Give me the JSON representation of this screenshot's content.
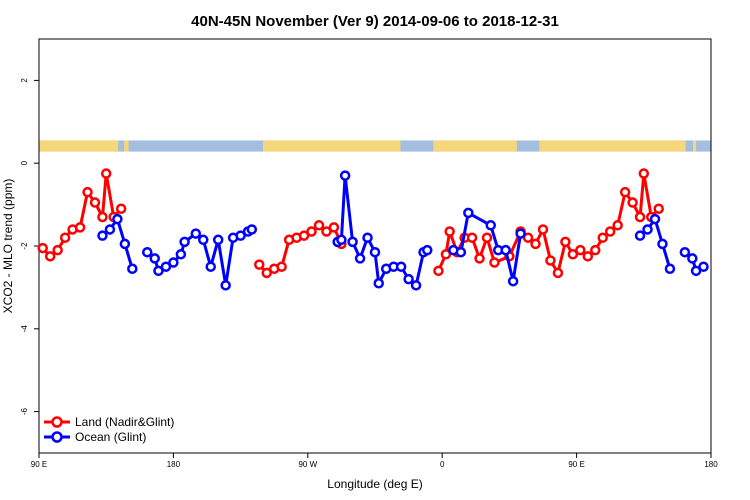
{
  "chart_data": {
    "type": "line",
    "title": "40N-45N November (Ver 9)   2014-09-06 to 2018-12-31",
    "xlabel": "Longitude (deg E)",
    "ylabel": "XCO2 - MLO trend (ppm)",
    "x_ticks": [
      {
        "value": 90,
        "label": "90 E"
      },
      {
        "value": 180,
        "label": "180"
      },
      {
        "value": 270,
        "label": "90 W"
      },
      {
        "value": 360,
        "label": "0"
      },
      {
        "value": 450,
        "label": "90 E"
      },
      {
        "value": 540,
        "label": "180"
      }
    ],
    "y_ticks": [
      {
        "value": 2,
        "label": "2"
      },
      {
        "value": 0,
        "label": "0"
      },
      {
        "value": -2,
        "label": "-2"
      },
      {
        "value": -4,
        "label": "-4"
      },
      {
        "value": -6,
        "label": "-6"
      }
    ],
    "xlim": [
      90,
      540
    ],
    "ylim": [
      -7.0,
      3.0
    ],
    "legend_position": "bottom-left",
    "land_mask_band": {
      "y_range": [
        0.28,
        0.55
      ],
      "land_color": "#f6d87a",
      "ocean_color": "#a3bedf",
      "land_x": [
        [
          90,
          143
        ],
        [
          147,
          150
        ],
        [
          240,
          332
        ],
        [
          354,
          410
        ],
        [
          425,
          523
        ],
        [
          528,
          530
        ]
      ]
    },
    "series": [
      {
        "name": "Land (Nadir&Glint)",
        "color": "#ff0000",
        "segments": [
          [
            [
              92.5,
              -2.05
            ],
            [
              97.5,
              -2.25
            ],
            [
              102.5,
              -2.1
            ],
            [
              107.5,
              -1.8
            ],
            [
              112.5,
              -1.6
            ],
            [
              117.5,
              -1.55
            ],
            [
              122.5,
              -0.7
            ],
            [
              127.5,
              -0.95
            ],
            [
              132.5,
              -1.3
            ],
            [
              135,
              -0.25
            ],
            [
              140,
              -1.3
            ],
            [
              145,
              -1.1
            ]
          ],
          [
            [
              237.5,
              -2.45
            ],
            [
              242.5,
              -2.65
            ],
            [
              247.5,
              -2.55
            ],
            [
              252.5,
              -2.5
            ],
            [
              257.5,
              -1.85
            ],
            [
              262.5,
              -1.8
            ],
            [
              267.5,
              -1.75
            ],
            [
              272.5,
              -1.65
            ],
            [
              277.5,
              -1.5
            ],
            [
              282.5,
              -1.65
            ],
            [
              287.5,
              -1.55
            ],
            [
              292.5,
              -1.95
            ]
          ],
          [
            [
              357.5,
              -2.6
            ],
            [
              362.5,
              -2.2
            ],
            [
              365,
              -1.65
            ],
            [
              370,
              -2.15
            ],
            [
              375,
              -1.8
            ],
            [
              380,
              -1.8
            ],
            [
              385,
              -2.3
            ],
            [
              390,
              -1.8
            ],
            [
              395,
              -2.4
            ],
            [
              405,
              -2.25
            ],
            [
              412.5,
              -1.65
            ],
            [
              417.5,
              -1.8
            ],
            [
              422.5,
              -1.95
            ],
            [
              427.5,
              -1.6
            ],
            [
              432.5,
              -2.35
            ],
            [
              437.5,
              -2.65
            ],
            [
              442.5,
              -1.9
            ],
            [
              447.5,
              -2.2
            ],
            [
              452.5,
              -2.1
            ],
            [
              457.5,
              -2.25
            ],
            [
              462.5,
              -2.1
            ],
            [
              467.5,
              -1.8
            ],
            [
              472.5,
              -1.65
            ],
            [
              477.5,
              -1.5
            ],
            [
              482.5,
              -0.7
            ],
            [
              487.5,
              -0.95
            ],
            [
              492.5,
              -1.3
            ],
            [
              495,
              -0.25
            ],
            [
              500,
              -1.3
            ],
            [
              505,
              -1.1
            ]
          ]
        ]
      },
      {
        "name": "Ocean (Glint)",
        "color": "#0000ff",
        "segments": [
          [
            [
              132.5,
              -1.75
            ],
            [
              137.5,
              -1.6
            ],
            [
              142.5,
              -1.35
            ],
            [
              147.5,
              -1.95
            ],
            [
              152.5,
              -2.55
            ]
          ],
          [
            [
              162.5,
              -2.15
            ],
            [
              167.5,
              -2.3
            ],
            [
              170,
              -2.6
            ],
            [
              175,
              -2.5
            ],
            [
              180,
              -2.4
            ],
            [
              185,
              -2.2
            ],
            [
              187.5,
              -1.9
            ],
            [
              195,
              -1.7
            ],
            [
              200,
              -1.85
            ],
            [
              205,
              -2.5
            ],
            [
              210,
              -1.85
            ],
            [
              215,
              -2.95
            ],
            [
              220,
              -1.8
            ],
            [
              225,
              -1.75
            ],
            [
              230,
              -1.65
            ],
            [
              232.5,
              -1.6
            ]
          ],
          [
            [
              290,
              -1.9
            ],
            [
              292.5,
              -1.85
            ],
            [
              295,
              -0.3
            ],
            [
              300,
              -1.9
            ],
            [
              305,
              -2.3
            ],
            [
              310,
              -1.8
            ],
            [
              315,
              -2.15
            ],
            [
              317.5,
              -2.9
            ],
            [
              322.5,
              -2.55
            ],
            [
              327.5,
              -2.5
            ],
            [
              332.5,
              -2.5
            ],
            [
              337.5,
              -2.8
            ],
            [
              342.5,
              -2.95
            ],
            [
              347.5,
              -2.15
            ],
            [
              350,
              -2.1
            ]
          ],
          [
            [
              367.5,
              -2.1
            ],
            [
              372.5,
              -2.15
            ],
            [
              377.5,
              -1.2
            ],
            [
              392.5,
              -1.5
            ],
            [
              397.5,
              -2.1
            ],
            [
              402.5,
              -2.1
            ],
            [
              407.5,
              -2.85
            ],
            [
              412.5,
              -1.7
            ]
          ],
          [
            [
              492.5,
              -1.75
            ],
            [
              497.5,
              -1.6
            ],
            [
              502.5,
              -1.35
            ],
            [
              507.5,
              -1.95
            ],
            [
              512.5,
              -2.55
            ]
          ],
          [
            [
              522.5,
              -2.15
            ],
            [
              527.5,
              -2.3
            ],
            [
              530,
              -2.6
            ],
            [
              535,
              -2.5
            ]
          ]
        ]
      }
    ]
  }
}
